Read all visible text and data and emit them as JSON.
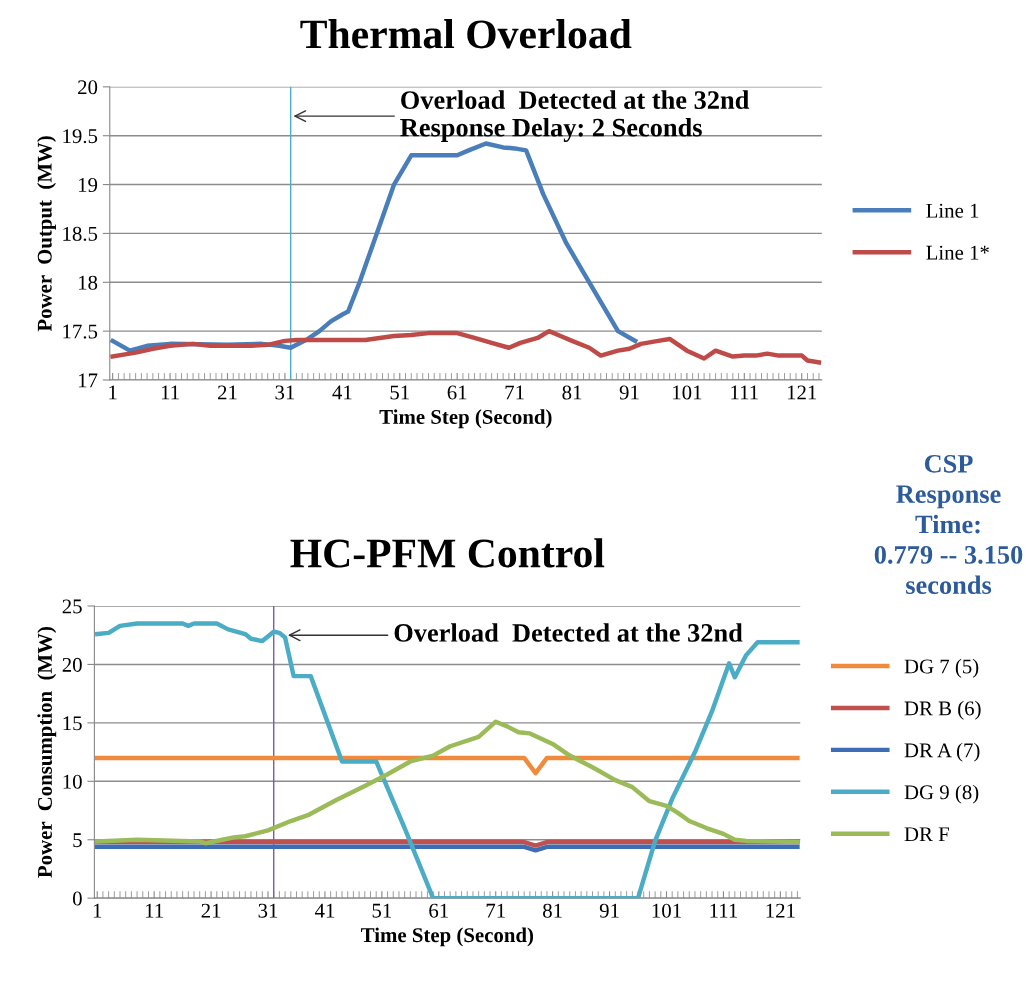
{
  "chart_data": [
    {
      "type": "line",
      "title": "Thermal Overload",
      "xlabel": "Time Step (Second)",
      "ylabel": "Power  Output  (MW)",
      "xlim": [
        0.5,
        124.5
      ],
      "xticks": [
        1,
        11,
        21,
        31,
        41,
        51,
        61,
        71,
        81,
        91,
        101,
        111,
        121
      ],
      "ylim": [
        17,
        20
      ],
      "yticks": [
        17,
        17.5,
        18,
        18.5,
        19,
        19.5,
        20
      ],
      "grid": "y",
      "legend": "right",
      "marker": "none",
      "line_style": "solid",
      "ref_lines": [
        {
          "axis": "x",
          "value": 32,
          "color": "#4bacc6"
        }
      ],
      "annotations": [
        {
          "text": "Overload  Detected at the 32nd\nResponse Delay: 2 Seconds",
          "x": 32,
          "y": 19.7
        }
      ],
      "series": [
        {
          "name": "Line 1",
          "color": "#4a7ebb",
          "x": [
            1,
            4,
            7,
            11,
            21,
            27,
            30,
            32,
            35,
            37,
            39,
            41,
            42,
            44,
            47,
            50,
            53,
            56,
            61,
            63,
            66,
            69,
            71,
            73,
            76,
            80,
            83,
            86,
            89,
            92
          ],
          "values": [
            17.4,
            17.3,
            17.35,
            17.37,
            17.36,
            17.37,
            17.35,
            17.33,
            17.42,
            17.5,
            17.6,
            17.67,
            17.7,
            18.0,
            18.5,
            19.0,
            19.3,
            19.3,
            19.3,
            19.35,
            19.42,
            19.38,
            19.37,
            19.35,
            18.9,
            18.4,
            18.1,
            17.8,
            17.5,
            17.4
          ]
        },
        {
          "name": "Line 1*",
          "color": "#be4b48",
          "x": [
            1,
            5,
            8,
            11,
            15,
            18,
            25,
            28,
            31,
            33,
            45,
            50,
            53,
            56,
            61,
            64,
            67,
            70,
            72,
            75,
            77,
            79,
            81,
            84,
            86,
            89,
            91,
            93,
            96,
            98,
            101,
            104,
            106,
            109,
            111,
            113,
            115,
            117,
            121,
            122,
            124
          ],
          "values": [
            17.24,
            17.28,
            17.32,
            17.35,
            17.37,
            17.35,
            17.35,
            17.36,
            17.4,
            17.41,
            17.41,
            17.45,
            17.46,
            17.48,
            17.48,
            17.43,
            17.38,
            17.33,
            17.38,
            17.43,
            17.5,
            17.45,
            17.4,
            17.33,
            17.25,
            17.3,
            17.32,
            17.37,
            17.4,
            17.42,
            17.3,
            17.22,
            17.3,
            17.24,
            17.25,
            17.25,
            17.27,
            17.25,
            17.25,
            17.2,
            17.18
          ]
        }
      ]
    },
    {
      "type": "line",
      "title": "HC-PFM Control",
      "xlabel": "Time Step (Second)",
      "ylabel": "Power  Consumption  (MW)",
      "xlim": [
        0.5,
        124.5
      ],
      "xticks": [
        1,
        11,
        21,
        31,
        41,
        51,
        61,
        71,
        81,
        91,
        101,
        111,
        121
      ],
      "ylim": [
        0,
        25
      ],
      "yticks": [
        0,
        5,
        10,
        15,
        20,
        25
      ],
      "grid": "y",
      "legend": "right",
      "marker": "none",
      "line_style": "solid",
      "ref_lines": [
        {
          "axis": "x",
          "value": 32,
          "color": "#7b5ba6"
        }
      ],
      "annotations": [
        {
          "text": "Overload  Detected at the 32nd",
          "x": 34,
          "y": 22.5
        },
        "CSP\nResponse\nTime:\n0.779 -- 3.150\nseconds"
      ],
      "series": [
        {
          "name": "DG 7 (5)",
          "color": "#f08a3c",
          "x": [
            1,
            76,
            78,
            80,
            124
          ],
          "values": [
            12,
            12,
            10.7,
            12,
            12
          ]
        },
        {
          "name": "DR B (6)",
          "color": "#c0504d",
          "x": [
            1,
            76,
            78,
            80,
            124
          ],
          "values": [
            4.8,
            4.8,
            4.5,
            4.8,
            4.8
          ]
        },
        {
          "name": "DR A (7)",
          "color": "#3d6eb5",
          "x": [
            1,
            76,
            78,
            80,
            124
          ],
          "values": [
            4.4,
            4.4,
            4.1,
            4.4,
            4.4
          ]
        },
        {
          "name": "DG 9 (8)",
          "color": "#4bacc6",
          "x": [
            1,
            3,
            5,
            8,
            16,
            17,
            18,
            22,
            24,
            27,
            28,
            30,
            32,
            33,
            34,
            35.5,
            38.5,
            44,
            50,
            55,
            60,
            96,
            99,
            102,
            106,
            109,
            112,
            113,
            115,
            117,
            120,
            124
          ],
          "values": [
            22.6,
            22.7,
            23.3,
            23.5,
            23.5,
            23.3,
            23.5,
            23.5,
            23.0,
            22.6,
            22.2,
            22.0,
            22.8,
            22.7,
            22.3,
            19.0,
            19.0,
            11.7,
            11.7,
            6.0,
            0,
            0,
            4.9,
            8.5,
            12.5,
            16.0,
            20.1,
            18.9,
            20.8,
            21.9,
            21.9,
            21.9
          ]
        },
        {
          "name": "DR F",
          "color": "#9bbb59",
          "x": [
            1,
            8,
            19,
            20,
            23,
            25,
            27,
            31,
            35,
            38,
            43,
            48,
            52,
            56,
            60,
            63,
            68,
            71,
            73,
            75,
            77,
            81,
            84,
            88,
            92,
            95,
            98,
            101,
            103,
            105,
            108,
            111,
            113,
            115,
            124
          ],
          "values": [
            4.85,
            5.0,
            4.85,
            4.7,
            5.0,
            5.2,
            5.3,
            5.8,
            6.6,
            7.1,
            8.4,
            9.6,
            10.6,
            11.7,
            12.2,
            13.0,
            13.8,
            15.1,
            14.7,
            14.2,
            14.1,
            13.2,
            12.2,
            11.2,
            10.1,
            9.5,
            8.3,
            7.9,
            7.3,
            6.6,
            6.0,
            5.5,
            5.0,
            4.9,
            4.8
          ]
        }
      ]
    }
  ]
}
